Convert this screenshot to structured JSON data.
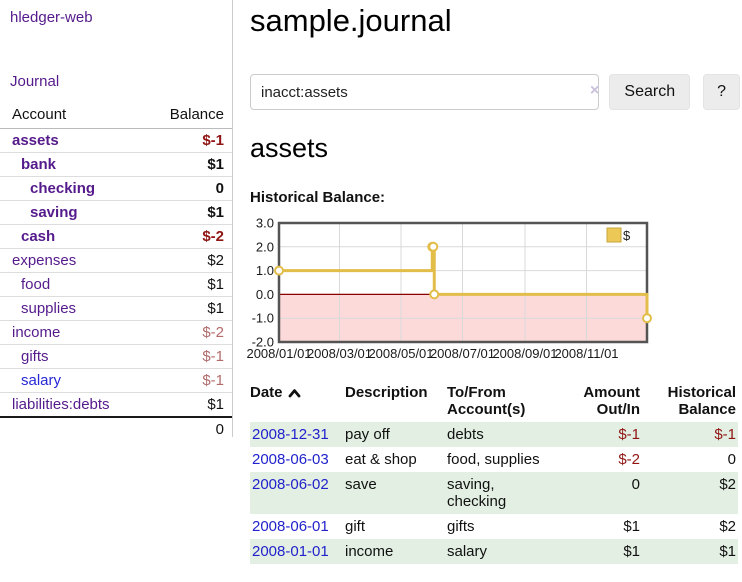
{
  "sidebar": {
    "brand": "hledger-web",
    "journal_link": "Journal",
    "accounts_table": {
      "headers": {
        "account": "Account",
        "balance": "Balance"
      },
      "rows": [
        {
          "name": "assets",
          "depth": 1,
          "bold": true,
          "balance": "$-1",
          "balance_style": "neg-strong",
          "link_style": "visited"
        },
        {
          "name": "bank",
          "depth": 2,
          "bold": true,
          "balance": "$1",
          "balance_style": "normal",
          "link_style": "visited"
        },
        {
          "name": "checking",
          "depth": 3,
          "bold": true,
          "balance": "0",
          "balance_style": "normal",
          "link_style": "visited"
        },
        {
          "name": "saving",
          "depth": 3,
          "bold": true,
          "balance": "$1",
          "balance_style": "normal",
          "link_style": "visited"
        },
        {
          "name": "cash",
          "depth": 2,
          "bold": true,
          "balance": "$-2",
          "balance_style": "neg-strong",
          "link_style": "visited"
        },
        {
          "name": "expenses",
          "depth": 1,
          "bold": false,
          "balance": "$2",
          "balance_style": "normal",
          "link_style": "visited"
        },
        {
          "name": "food",
          "depth": 2,
          "bold": false,
          "balance": "$1",
          "balance_style": "normal",
          "link_style": "visited"
        },
        {
          "name": "supplies",
          "depth": 2,
          "bold": false,
          "balance": "$1",
          "balance_style": "normal",
          "link_style": "visited"
        },
        {
          "name": "income",
          "depth": 1,
          "bold": false,
          "balance": "$-2",
          "balance_style": "neg-muted",
          "link_style": "visited"
        },
        {
          "name": "gifts",
          "depth": 2,
          "bold": false,
          "balance": "$-1",
          "balance_style": "neg-muted",
          "link_style": "visited"
        },
        {
          "name": "salary",
          "depth": 2,
          "bold": false,
          "balance": "$-1",
          "balance_style": "neg-muted",
          "link_style": "unvisited"
        },
        {
          "name": "liabilities:debts",
          "depth": 1,
          "bold": false,
          "balance": "$1",
          "balance_style": "normal",
          "link_style": "visited"
        }
      ],
      "total": "0"
    }
  },
  "header": {
    "title": "sample.journal"
  },
  "search": {
    "value": "inacct:assets",
    "clear_icon": "×",
    "search_button": "Search",
    "help_button": "?"
  },
  "account_page": {
    "title": "assets",
    "chart_label": "Historical Balance:"
  },
  "chart_data": {
    "type": "line",
    "step": true,
    "title": "Historical Balance",
    "series": [
      {
        "name": "$",
        "points": [
          [
            "2008-01-01",
            1
          ],
          [
            "2008-06-01",
            2
          ],
          [
            "2008-06-02",
            2
          ],
          [
            "2008-06-03",
            0
          ],
          [
            "2008-12-31",
            -1
          ]
        ]
      }
    ],
    "x_range": [
      "2008-01-01",
      "2008-12-31"
    ],
    "ylim": [
      -2,
      3
    ],
    "ytick_labels": [
      "3.0",
      "2.0",
      "1.0",
      "0.0",
      "-1.0",
      "-2.0"
    ],
    "yticks": [
      3,
      2,
      1,
      0,
      -1,
      -2
    ],
    "xticks": [
      "2008-01-01",
      "2008-03-01",
      "2008-05-01",
      "2008-07-01",
      "2008-09-01",
      "2008-11-01"
    ],
    "xtick_labels": [
      "2008/01/01",
      "2008/03/01",
      "2008/05/01",
      "2008/07/01",
      "2008/09/01",
      "2008/11/01"
    ],
    "grid": true,
    "legend_position": "top-right",
    "negative_region_highlight": true,
    "colors": {
      "line": "#e3bd4a",
      "marker_fill": "#ffffff",
      "legend_fill": "#ecc957",
      "legend_border": "#c9a53e",
      "negative_fill": "#fcdada",
      "zero_line": "#8b0000",
      "grid": "#d9d9d9",
      "border": "#545454",
      "tick_text": "#1a1a1a"
    }
  },
  "register_table": {
    "headers": {
      "date": "Date",
      "description": "Description",
      "accounts": "To/From Account(s)",
      "amount": "Amount Out/In",
      "balance": "Historical Balance"
    },
    "sort_icon": "chevron-up",
    "rows": [
      {
        "date": "2008-12-31",
        "description": "pay off",
        "accounts": "debts",
        "amount": "$-1",
        "amount_style": "neg-strong",
        "balance": "$-1",
        "balance_style": "neg-strong",
        "stripe": true
      },
      {
        "date": "2008-06-03",
        "description": "eat & shop",
        "accounts": "food, supplies",
        "amount": "$-2",
        "amount_style": "neg-strong",
        "balance": "0",
        "balance_style": "normal",
        "stripe": false
      },
      {
        "date": "2008-06-02",
        "description": "save",
        "accounts": "saving, checking",
        "amount": "0",
        "amount_style": "normal",
        "balance": "$2",
        "balance_style": "normal",
        "stripe": true
      },
      {
        "date": "2008-06-01",
        "description": "gift",
        "accounts": "gifts",
        "amount": "$1",
        "amount_style": "normal",
        "balance": "$2",
        "balance_style": "normal",
        "stripe": false
      },
      {
        "date": "2008-01-01",
        "description": "income",
        "accounts": "salary",
        "amount": "$1",
        "amount_style": "normal",
        "balance": "$1",
        "balance_style": "normal",
        "stripe": true
      }
    ]
  },
  "colors": {
    "link_visited": "#551a8b",
    "link_unvisited": "#2828d7",
    "negative_strong": "#8f1414",
    "negative_muted": "#b36a6a",
    "row_stripe_green": "#e2efe2"
  }
}
